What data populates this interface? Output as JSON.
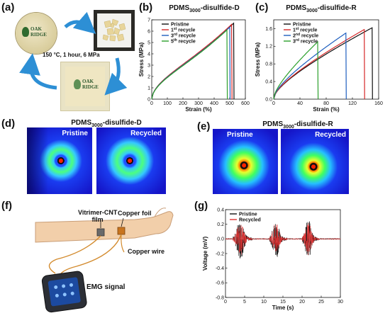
{
  "panels": {
    "a": "(a)",
    "b": "(b)",
    "c": "(c)",
    "d": "(d)",
    "e": "(e)",
    "f": "(f)",
    "g": "(g)"
  },
  "panel_a": {
    "process": "150 °C, 1 hour, 6 MPa",
    "logo_text_1": "OAK",
    "logo_text_2": "RIDGE"
  },
  "panel_d": {
    "title_pre": "PDMS",
    "title_sub": "3000",
    "title_post": "-disulfide-D",
    "left_label": "Pristine",
    "right_label": "Recycled"
  },
  "panel_e": {
    "title_pre": "PDMS",
    "title_sub": "3000",
    "title_post": "-disulfide-R",
    "left_label": "Pristine",
    "right_label": "Recycled"
  },
  "panel_f": {
    "film_label_1": "Vitrimer-CNT",
    "film_label_2": "film",
    "foil_label": "Copper foil",
    "wire_label": "Copper wire",
    "signal_label": "EMG signal"
  },
  "colors": {
    "pristine": "#111111",
    "recycle1": "#d62728",
    "recycle2": "#1f5fbf",
    "recycle3": "#2ca02c",
    "recycle5": "#2ca02c",
    "xrd_bg": "#1a1ad0"
  },
  "chart_data": [
    {
      "id": "b",
      "type": "line",
      "title_pre": "PDMS",
      "title_sub": "3000",
      "title_post": "-disulfide-D",
      "xlabel": "Strain (%)",
      "ylabel": "Stress (MPa)",
      "xlim": [
        0,
        600
      ],
      "ylim": [
        0,
        7
      ],
      "xticks": [
        0,
        100,
        200,
        300,
        400,
        500,
        600
      ],
      "yticks": [
        0,
        1,
        2,
        3,
        4,
        5,
        6,
        7
      ],
      "legend_position": "top-left",
      "series": [
        {
          "name": "Pristine",
          "sup": "",
          "color": "#111111",
          "break_x": 525,
          "break_y": 6.7
        },
        {
          "name": "1",
          "sup": "st",
          "suffix": " recycle",
          "color": "#d62728",
          "break_x": 512,
          "break_y": 6.6
        },
        {
          "name": "3",
          "sup": "rd",
          "suffix": " recycle",
          "color": "#1f5fbf",
          "break_x": 500,
          "break_y": 6.35
        },
        {
          "name": "5",
          "sup": "th",
          "suffix": " recycle",
          "color": "#2ca02c",
          "break_x": 482,
          "break_y": 6.1
        }
      ]
    },
    {
      "id": "c",
      "type": "line",
      "title_pre": "PDMS",
      "title_sub": "3000",
      "title_post": "-disulfide-R",
      "xlabel": "Strain (%)",
      "ylabel": "Stress (MPa)",
      "xlim": [
        0,
        160
      ],
      "ylim": [
        0,
        1.8
      ],
      "xticks": [
        0,
        40,
        80,
        120,
        160
      ],
      "yticks": [
        0.0,
        0.4,
        0.8,
        1.2,
        1.6
      ],
      "legend_position": "top-left",
      "series": [
        {
          "name": "Pristine",
          "sup": "",
          "color": "#111111",
          "break_x": 150,
          "break_y": 1.62
        },
        {
          "name": "1",
          "sup": "st",
          "suffix": " recycle",
          "color": "#d62728",
          "break_x": 138,
          "break_y": 1.58
        },
        {
          "name": "2",
          "sup": "nd",
          "suffix": " recycle",
          "color": "#1f5fbf",
          "break_x": 110,
          "break_y": 1.5
        },
        {
          "name": "3",
          "sup": "rd",
          "suffix": " recycle",
          "color": "#2ca02c",
          "break_x": 67,
          "break_y": 1.3
        }
      ]
    },
    {
      "id": "g",
      "type": "line",
      "xlabel": "Time (s)",
      "ylabel": "Voltage (mV)",
      "xlim": [
        0,
        30
      ],
      "ylim": [
        -0.8,
        0.4
      ],
      "xticks": [
        0,
        5,
        10,
        15,
        20,
        25,
        30
      ],
      "yticks": [
        0.4,
        0.2,
        0.0,
        -0.2,
        -0.4,
        -0.6,
        -0.8
      ],
      "legend_position": "top-left",
      "bursts": [
        [
          2,
          7
        ],
        [
          11.5,
          16
        ],
        [
          20,
          24.5
        ]
      ],
      "series": [
        {
          "name": "Pristine",
          "color": "#111111"
        },
        {
          "name": "Recycled",
          "color": "#e03030"
        }
      ]
    }
  ]
}
